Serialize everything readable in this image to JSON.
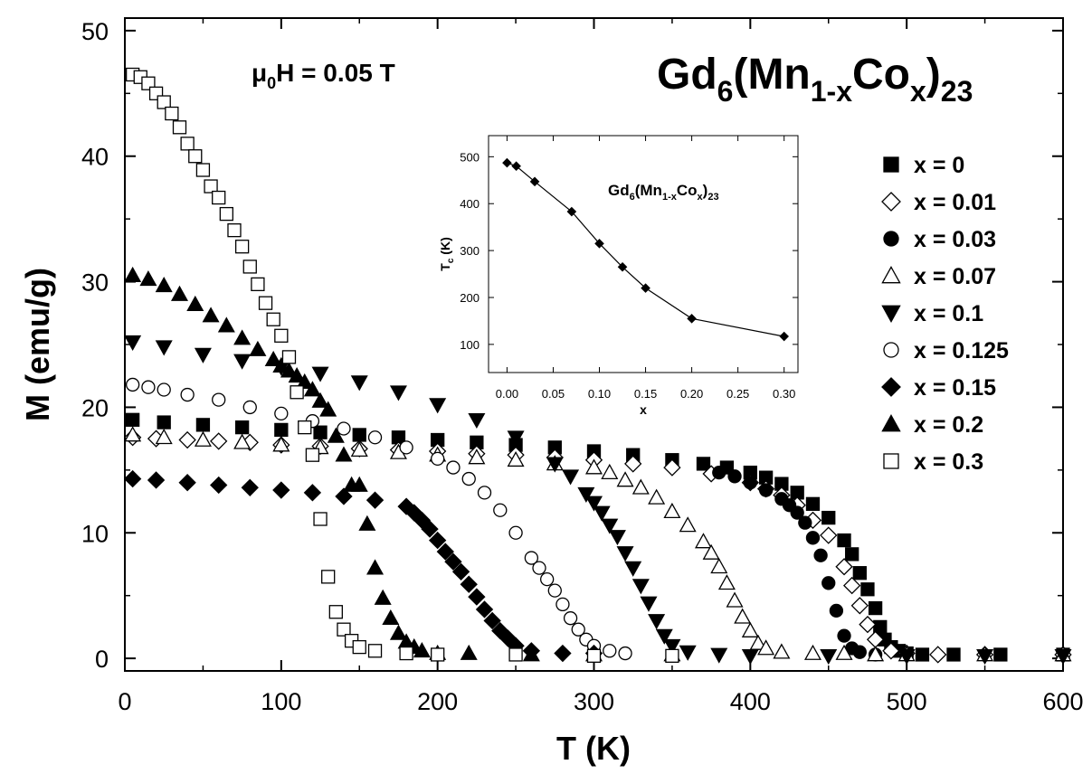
{
  "chart_data": [
    {
      "type": "scatter",
      "xlabel": "T (K)",
      "ylabel": "M (emu/g)",
      "xlim": [
        0,
        600
      ],
      "ylim": [
        -1,
        51
      ],
      "xticks": [
        "0",
        "100",
        "200",
        "300",
        "400",
        "500",
        "600"
      ],
      "yticks": [
        "0",
        "10",
        "20",
        "30",
        "40",
        "50"
      ],
      "grid": false,
      "legend_position": "right",
      "field_label": {
        "main": "μ",
        "sub": "0",
        "rest": "H = 0.05 T"
      },
      "formula": {
        "a": "Gd",
        "b": "6",
        "c": "(Mn",
        "d": "1-x",
        "e": "Co",
        "f": "x",
        "g": ")",
        "h": "23"
      },
      "series": [
        {
          "name": "x = 0",
          "marker": "filled-square",
          "x": [
            5,
            25,
            50,
            75,
            100,
            125,
            150,
            175,
            200,
            225,
            250,
            275,
            300,
            325,
            350,
            370,
            385,
            400,
            410,
            420,
            430,
            440,
            450,
            460,
            465,
            470,
            475,
            480,
            483,
            486,
            490,
            495,
            500,
            510,
            530,
            560,
            600
          ],
          "y": [
            19,
            18.8,
            18.6,
            18.4,
            18.2,
            18,
            17.8,
            17.6,
            17.4,
            17.2,
            17,
            16.8,
            16.5,
            16.2,
            15.8,
            15.5,
            15.2,
            14.8,
            14.4,
            13.9,
            13.2,
            12.3,
            11.2,
            9.4,
            8.3,
            6.8,
            5.5,
            4,
            2.5,
            1.5,
            0.9,
            0.6,
            0.4,
            0.3,
            0.3,
            0.3,
            0.3
          ]
        },
        {
          "name": "x = 0.01",
          "marker": "open-diamond",
          "x": [
            5,
            20,
            40,
            60,
            80,
            100,
            125,
            150,
            175,
            200,
            225,
            250,
            275,
            300,
            325,
            350,
            375,
            400,
            410,
            420,
            430,
            440,
            450,
            460,
            465,
            470,
            475,
            480,
            490,
            500,
            520,
            550,
            600
          ],
          "y": [
            17.6,
            17.5,
            17.4,
            17.3,
            17.2,
            17,
            16.9,
            16.7,
            16.6,
            16.5,
            16.3,
            16.2,
            16,
            15.8,
            15.5,
            15.2,
            14.7,
            14,
            13.5,
            13,
            12.2,
            11,
            9.8,
            7.3,
            5.8,
            4.2,
            2.7,
            1.5,
            0.6,
            0.4,
            0.3,
            0.3,
            0.3
          ]
        },
        {
          "name": "x = 0.03",
          "marker": "filled-circle",
          "x": [
            380,
            390,
            400,
            410,
            420,
            425,
            430,
            435,
            440,
            445,
            450,
            455,
            460,
            465,
            470,
            480,
            500
          ],
          "y": [
            14.8,
            14.5,
            14,
            13.4,
            12.7,
            12.2,
            11.6,
            10.8,
            9.6,
            8.2,
            6,
            3.8,
            1.8,
            0.8,
            0.5,
            0.3,
            0.3
          ]
        },
        {
          "name": "x = 0.07",
          "marker": "open-triangle",
          "x": [
            5,
            25,
            50,
            75,
            100,
            125,
            150,
            175,
            200,
            225,
            250,
            275,
            300,
            310,
            320,
            330,
            340,
            350,
            360,
            370,
            375,
            380,
            385,
            390,
            395,
            400,
            405,
            410,
            420,
            440,
            460,
            480,
            500,
            550,
            600
          ],
          "y": [
            17.8,
            17.6,
            17.4,
            17.2,
            17,
            16.8,
            16.6,
            16.4,
            16.2,
            16,
            15.8,
            15.5,
            15.2,
            14.8,
            14.2,
            13.6,
            12.8,
            11.7,
            10.6,
            9.3,
            8.4,
            7.3,
            6,
            4.6,
            3.3,
            2.2,
            1.2,
            0.8,
            0.5,
            0.4,
            0.4,
            0.3,
            0.3,
            0.3,
            0.3
          ]
        },
        {
          "name": "x = 0.1",
          "marker": "filled-down-triangle",
          "x": [
            5,
            25,
            50,
            75,
            100,
            125,
            150,
            175,
            200,
            225,
            250,
            275,
            285,
            295,
            300,
            305,
            310,
            315,
            320,
            325,
            330,
            335,
            340,
            345,
            350,
            360,
            380,
            400,
            450,
            500,
            550,
            600
          ],
          "y": [
            25.2,
            24.8,
            24.2,
            23.7,
            23.2,
            22.7,
            22,
            21.2,
            20.2,
            19,
            17.6,
            15.5,
            14.5,
            13.1,
            12.4,
            11.6,
            10.6,
            9.7,
            8.4,
            7.2,
            5.8,
            4.4,
            3,
            1.8,
            1,
            0.5,
            0.3,
            0.2,
            0.2,
            0.2,
            0.2,
            0.2
          ]
        },
        {
          "name": "x = 0.125",
          "marker": "open-circle",
          "x": [
            5,
            15,
            25,
            40,
            60,
            80,
            100,
            120,
            140,
            160,
            180,
            200,
            210,
            220,
            230,
            240,
            250,
            260,
            265,
            270,
            275,
            280,
            285,
            290,
            295,
            300,
            310,
            320
          ],
          "y": [
            21.8,
            21.6,
            21.4,
            21,
            20.6,
            20,
            19.5,
            18.9,
            18.3,
            17.6,
            16.8,
            15.9,
            15.2,
            14.3,
            13.2,
            11.8,
            10,
            8,
            7.2,
            6.3,
            5.4,
            4.3,
            3.2,
            2.3,
            1.5,
            1,
            0.6,
            0.4
          ]
        },
        {
          "name": "x = 0.15",
          "marker": "filled-diamond",
          "x": [
            5,
            20,
            40,
            60,
            80,
            100,
            120,
            140,
            160,
            180,
            185,
            190,
            195,
            200,
            205,
            210,
            215,
            220,
            225,
            230,
            235,
            240,
            245,
            250,
            260,
            280,
            300
          ],
          "y": [
            14.3,
            14.2,
            14,
            13.8,
            13.6,
            13.4,
            13.2,
            12.9,
            12.6,
            12.1,
            11.6,
            11,
            10.3,
            9.4,
            8.5,
            7.7,
            6.9,
            5.9,
            4.9,
            3.9,
            3,
            2.2,
            1.6,
            1,
            0.6,
            0.4,
            0.4
          ]
        },
        {
          "name": "x = 0.2",
          "marker": "filled-triangle",
          "x": [
            5,
            15,
            25,
            35,
            45,
            55,
            65,
            75,
            85,
            95,
            100,
            105,
            110,
            115,
            120,
            125,
            130,
            135,
            140,
            145,
            150,
            155,
            160,
            165,
            170,
            175,
            180,
            185,
            190,
            200,
            220,
            260,
            300,
            350
          ],
          "y": [
            30.5,
            30.2,
            29.7,
            29,
            28.2,
            27.3,
            26.5,
            25.5,
            24.6,
            23.8,
            23.3,
            22.9,
            22.5,
            22,
            21.4,
            20.5,
            19.8,
            17.7,
            16.2,
            13.8,
            13.8,
            10.7,
            7.2,
            4.8,
            3.2,
            2,
            1.3,
            0.9,
            0.6,
            0.4,
            0.4,
            0.3,
            0.3,
            0.3
          ]
        },
        {
          "name": "x = 0.3",
          "marker": "open-square",
          "x": [
            5,
            10,
            15,
            20,
            25,
            30,
            35,
            40,
            45,
            50,
            55,
            60,
            65,
            70,
            75,
            80,
            85,
            90,
            95,
            100,
            105,
            110,
            115,
            120,
            125,
            130,
            135,
            140,
            145,
            150,
            160,
            180,
            200,
            250,
            300,
            350
          ],
          "y": [
            46.5,
            46.3,
            45.8,
            45,
            44.3,
            43.4,
            42.3,
            41,
            40,
            38.9,
            37.6,
            36.7,
            35.4,
            34.1,
            32.8,
            31.2,
            29.8,
            28.3,
            27,
            25.7,
            24,
            21.2,
            18.4,
            16.2,
            11.1,
            6.5,
            3.7,
            2.3,
            1.4,
            0.9,
            0.6,
            0.4,
            0.3,
            0.3,
            0.2,
            0.2
          ]
        }
      ]
    },
    {
      "type": "line",
      "xlabel": "x",
      "ylabel": {
        "main": "T",
        "sub": "c",
        "rest": " (K)"
      },
      "xlim": [
        -0.02,
        0.315
      ],
      "ylim": [
        40,
        545
      ],
      "xticks": [
        "0.00",
        "0.05",
        "0.10",
        "0.15",
        "0.20",
        "0.25",
        "0.30"
      ],
      "yticks": [
        "100",
        "200",
        "300",
        "400",
        "500"
      ],
      "formula": {
        "a": "Gd",
        "b": "6",
        "c": "(Mn",
        "d": "1-x",
        "e": "Co",
        "f": "x",
        "g": ")",
        "h": "23"
      },
      "marker": "filled-diamond",
      "x": [
        0,
        0.01,
        0.03,
        0.07,
        0.1,
        0.125,
        0.15,
        0.2,
        0.3
      ],
      "y": [
        487,
        480,
        447,
        383,
        315,
        265,
        220,
        155,
        117
      ]
    }
  ],
  "colors": {
    "ink": "#000000",
    "background": "#ffffff"
  }
}
